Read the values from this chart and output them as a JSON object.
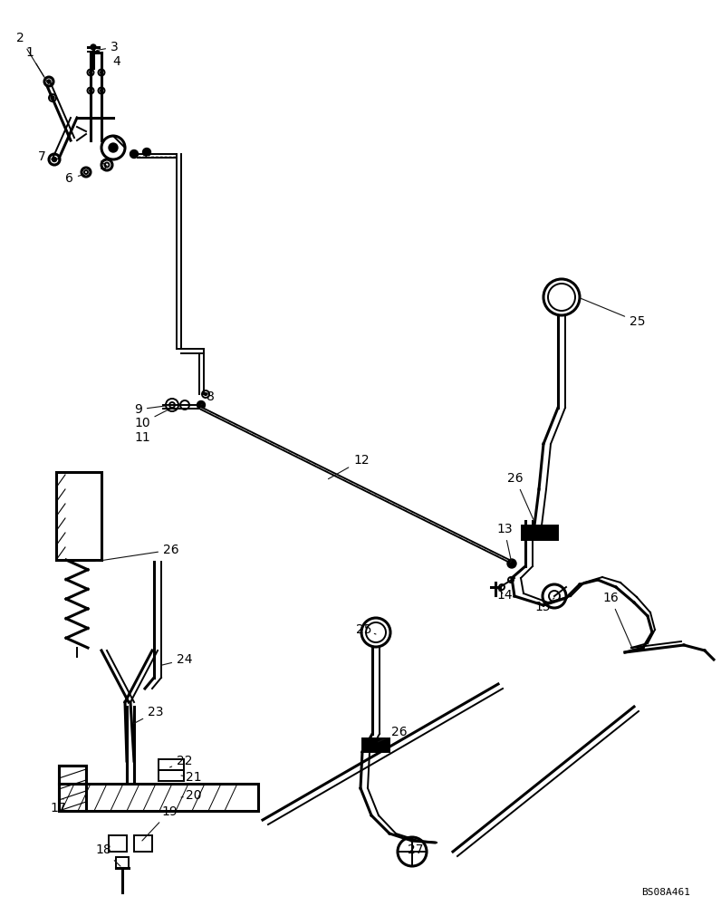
{
  "bg_color": "#ffffff",
  "line_color": "#000000",
  "watermark": "BS08A461",
  "lw": 1.4,
  "lw2": 2.2,
  "lw3": 0.9
}
